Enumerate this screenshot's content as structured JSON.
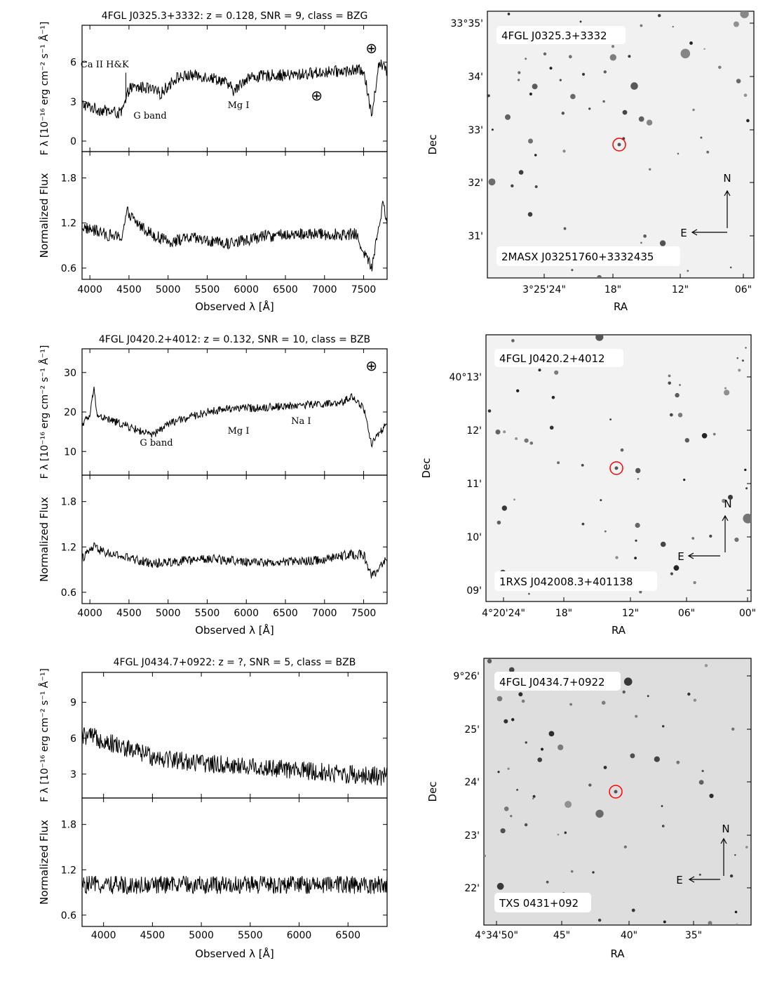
{
  "flux_label_main": "F",
  "flux_label_sub": "λ",
  "flux_label_units": "[10⁻¹⁶ erg cm⁻² s⁻¹ Å⁻¹]",
  "norm_label": "Normalized Flux",
  "x_label": "Observed λ [Å]",
  "ra_label": "RA",
  "dec_label": "Dec",
  "compass_n": "N",
  "compass_e": "E",
  "telluric_symbol": "⊕",
  "colors": {
    "ink": "#000000",
    "marker": "#ff0000",
    "sky_bg1": "#f1f1f1",
    "sky_bg3": "#dedede"
  },
  "chart_data": [
    {
      "type": "line",
      "title": "4FGL J0325.3+3332: z = 0.128, SNR = 9, class = BZG",
      "xlabel": "Observed λ [Å]",
      "xlim": [
        3900,
        7800
      ],
      "x_ticks": [
        "4000",
        "4500",
        "5000",
        "5500",
        "6000",
        "6500",
        "7000",
        "7500"
      ],
      "flux": {
        "ylim": [
          -0.8,
          8.8
        ],
        "y_ticks": [
          "0",
          "3",
          "6"
        ],
        "continuum": [
          [
            3900,
            2.8
          ],
          [
            4100,
            2.4
          ],
          [
            4400,
            2.1
          ],
          [
            4460,
            3.0
          ],
          [
            4500,
            4.0
          ],
          [
            4700,
            4.1
          ],
          [
            4900,
            3.6
          ],
          [
            5100,
            4.8
          ],
          [
            5300,
            5.0
          ],
          [
            5500,
            4.9
          ],
          [
            5700,
            4.6
          ],
          [
            5850,
            3.8
          ],
          [
            6000,
            4.8
          ],
          [
            6300,
            5.0
          ],
          [
            6600,
            5.0
          ],
          [
            6900,
            5.2
          ],
          [
            7200,
            5.3
          ],
          [
            7500,
            5.4
          ],
          [
            7600,
            2.0
          ],
          [
            7700,
            6.0
          ],
          [
            7800,
            5.2
          ]
        ],
        "noise": 0.45,
        "annotations": [
          {
            "text": "Ca II H&K",
            "x": 4190,
            "y": 5.6
          },
          {
            "text": "G band",
            "x": 4770,
            "y": 1.7
          },
          {
            "text": "Mg I",
            "x": 5900,
            "y": 2.5
          },
          {
            "text": "⊕",
            "x": 7600,
            "y": 6.7
          },
          {
            "text": "⊕",
            "x": 6900,
            "y": 3.1
          }
        ]
      },
      "normalized": {
        "ylim": [
          0.45,
          2.15
        ],
        "y_ticks": [
          "0.6",
          "1.2",
          "1.8"
        ],
        "continuum": [
          [
            3900,
            1.15
          ],
          [
            4200,
            1.05
          ],
          [
            4400,
            1.0
          ],
          [
            4480,
            1.35
          ],
          [
            4600,
            1.2
          ],
          [
            4800,
            1.05
          ],
          [
            5000,
            0.95
          ],
          [
            5300,
            1.0
          ],
          [
            5700,
            0.92
          ],
          [
            5900,
            0.95
          ],
          [
            6200,
            1.02
          ],
          [
            6600,
            1.05
          ],
          [
            7000,
            1.05
          ],
          [
            7400,
            1.05
          ],
          [
            7600,
            0.6
          ],
          [
            7750,
            1.5
          ],
          [
            7800,
            1.2
          ]
        ],
        "noise": 0.08
      },
      "sky": {
        "ra_ticks": [
          "3°25'24\"",
          "18\"",
          "12\"",
          "06\""
        ],
        "dec_ticks": [
          "33°35'",
          "34'",
          "33'",
          "32'",
          "31'"
        ],
        "source_label": "4FGL J0325.3+3332",
        "counterpart_label": "2MASX J03251760+3332435"
      }
    },
    {
      "type": "line",
      "title": "4FGL J0420.2+4012: z = 0.132, SNR = 10, class = BZB",
      "xlabel": "Observed λ [Å]",
      "xlim": [
        3900,
        7800
      ],
      "x_ticks": [
        "4000",
        "4500",
        "5000",
        "5500",
        "6000",
        "6500",
        "7000",
        "7500"
      ],
      "flux": {
        "ylim": [
          4,
          36
        ],
        "y_ticks": [
          "10",
          "20",
          "30"
        ],
        "continuum": [
          [
            3900,
            17
          ],
          [
            4000,
            19
          ],
          [
            4050,
            26
          ],
          [
            4100,
            19
          ],
          [
            4400,
            17
          ],
          [
            4800,
            14
          ],
          [
            5000,
            17
          ],
          [
            5500,
            20
          ],
          [
            5800,
            21
          ],
          [
            6100,
            21
          ],
          [
            6500,
            21.5
          ],
          [
            6900,
            22
          ],
          [
            7200,
            22
          ],
          [
            7350,
            24
          ],
          [
            7500,
            21
          ],
          [
            7600,
            12
          ],
          [
            7800,
            17
          ]
        ],
        "noise": 1.0,
        "annotations": [
          {
            "text": "G band",
            "x": 4850,
            "y": 11.5
          },
          {
            "text": "Mg I",
            "x": 5900,
            "y": 14.5
          },
          {
            "text": "Na I",
            "x": 6700,
            "y": 17.0
          },
          {
            "text": "⊕",
            "x": 7600,
            "y": 30.5
          }
        ]
      },
      "normalized": {
        "ylim": [
          0.45,
          2.15
        ],
        "y_ticks": [
          "0.6",
          "1.2",
          "1.8"
        ],
        "continuum": [
          [
            3900,
            1.05
          ],
          [
            4050,
            1.2
          ],
          [
            4200,
            1.12
          ],
          [
            4500,
            1.05
          ],
          [
            4800,
            0.98
          ],
          [
            5200,
            1.02
          ],
          [
            5600,
            1.04
          ],
          [
            6000,
            1.0
          ],
          [
            6500,
            1.0
          ],
          [
            6900,
            1.02
          ],
          [
            7300,
            1.1
          ],
          [
            7500,
            1.1
          ],
          [
            7600,
            0.8
          ],
          [
            7800,
            1.05
          ]
        ],
        "noise": 0.06
      },
      "sky": {
        "ra_ticks": [
          "4°20'24\"",
          "18\"",
          "12\"",
          "06\"",
          "00\""
        ],
        "dec_ticks": [
          "40°13'",
          "12'",
          "11'",
          "10'",
          "09'"
        ],
        "source_label": "4FGL J0420.2+4012",
        "counterpart_label": "1RXS J042008.3+401138"
      }
    },
    {
      "type": "line",
      "title": "4FGL J0434.7+0922: z = ?, SNR = 5, class = BZB",
      "xlabel": "Observed λ [Å]",
      "xlim": [
        3780,
        6900
      ],
      "x_ticks": [
        "4000",
        "4500",
        "5000",
        "5500",
        "6000",
        "6500"
      ],
      "flux": {
        "ylim": [
          1.0,
          11.5
        ],
        "y_ticks": [
          "3",
          "6",
          "9"
        ],
        "continuum": [
          [
            3780,
            6.2
          ],
          [
            3950,
            6.0
          ],
          [
            4200,
            5.2
          ],
          [
            4500,
            4.5
          ],
          [
            5000,
            3.9
          ],
          [
            5500,
            3.6
          ],
          [
            6000,
            3.3
          ],
          [
            6500,
            3.0
          ],
          [
            6900,
            2.8
          ]
        ],
        "noise": 0.8,
        "annotations": []
      },
      "normalized": {
        "ylim": [
          0.45,
          2.15
        ],
        "y_ticks": [
          "0.6",
          "1.2",
          "1.8"
        ],
        "continuum": [
          [
            3780,
            1.0
          ],
          [
            6900,
            1.0
          ]
        ],
        "noise": 0.12
      },
      "sky": {
        "ra_ticks": [
          "4°34'50\"",
          "45\"",
          "40\"",
          "35\""
        ],
        "dec_ticks": [
          "9°26'",
          "25'",
          "24'",
          "23'",
          "22'"
        ],
        "source_label": "4FGL J0434.7+0922",
        "counterpart_label": "TXS 0431+092"
      }
    }
  ]
}
